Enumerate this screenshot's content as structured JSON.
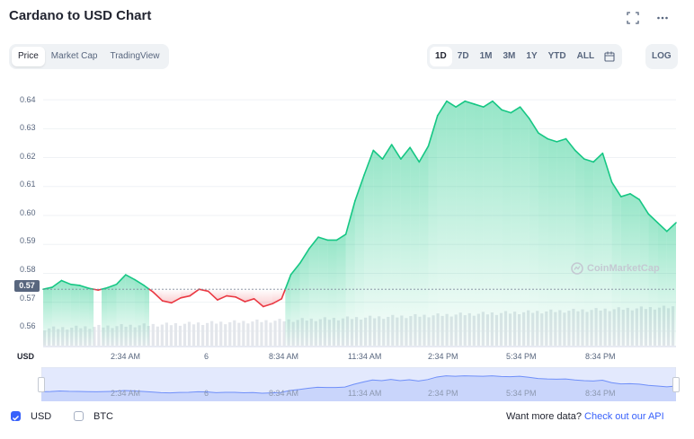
{
  "header": {
    "title": "Cardano to USD Chart"
  },
  "chart_tabs": [
    {
      "label": "Price",
      "active": true
    },
    {
      "label": "Market Cap",
      "active": false
    },
    {
      "label": "TradingView",
      "active": false
    }
  ],
  "ranges": [
    {
      "label": "1D",
      "active": true
    },
    {
      "label": "7D",
      "active": false
    },
    {
      "label": "1M",
      "active": false
    },
    {
      "label": "3M",
      "active": false
    },
    {
      "label": "1Y",
      "active": false
    },
    {
      "label": "YTD",
      "active": false
    },
    {
      "label": "ALL",
      "active": false
    }
  ],
  "log_label": "LOG",
  "watermark": "CoinMarketCap",
  "current_price": "0.57",
  "axis_currency": "USD",
  "colors": {
    "up": "#16c784",
    "down": "#ea3943",
    "accent": "#3861fb"
  },
  "chart_data": {
    "type": "line",
    "ylim": [
      0.555,
      0.645
    ],
    "y_ticks": [
      "0.64",
      "0.63",
      "0.62",
      "0.61",
      "0.60",
      "0.59",
      "0.58",
      "0.57",
      "0.56"
    ],
    "x_ticks": [
      "2:34 AM",
      "6",
      "8:34 AM",
      "11:34 AM",
      "2:34 PM",
      "5:34 PM",
      "8:34 PM"
    ],
    "reference_price": 0.5745,
    "series": [
      {
        "values": [
          0.5745,
          0.5752,
          0.5775,
          0.5762,
          0.5758,
          0.5748,
          0.5742,
          0.575,
          0.5762,
          0.5795,
          0.5778,
          0.5758,
          0.5735,
          0.5705,
          0.5698,
          0.5715,
          0.5722,
          0.5745,
          0.5738,
          0.5708,
          0.5722,
          0.5718,
          0.5702,
          0.5712,
          0.5685,
          0.5695,
          0.5712,
          0.5795,
          0.5835,
          0.5885,
          0.5925,
          0.5915,
          0.5915,
          0.5935,
          0.605,
          0.614,
          0.6225,
          0.6195,
          0.6245,
          0.6195,
          0.6235,
          0.6185,
          0.624,
          0.6345,
          0.6395,
          0.6375,
          0.6395,
          0.6385,
          0.6375,
          0.6395,
          0.6365,
          0.6355,
          0.6375,
          0.6335,
          0.6285,
          0.6265,
          0.6255,
          0.6265,
          0.6225,
          0.6195,
          0.6185,
          0.6215,
          0.6115,
          0.6065,
          0.6075,
          0.6055,
          0.6005,
          0.5975,
          0.5945,
          0.5975
        ]
      }
    ],
    "volume_trend": "increasing"
  },
  "footer": {
    "usd_label": "USD",
    "usd_checked": true,
    "btc_label": "BTC",
    "btc_checked": false,
    "more_data_text": "Want more data?",
    "api_link": "Check out our API"
  }
}
